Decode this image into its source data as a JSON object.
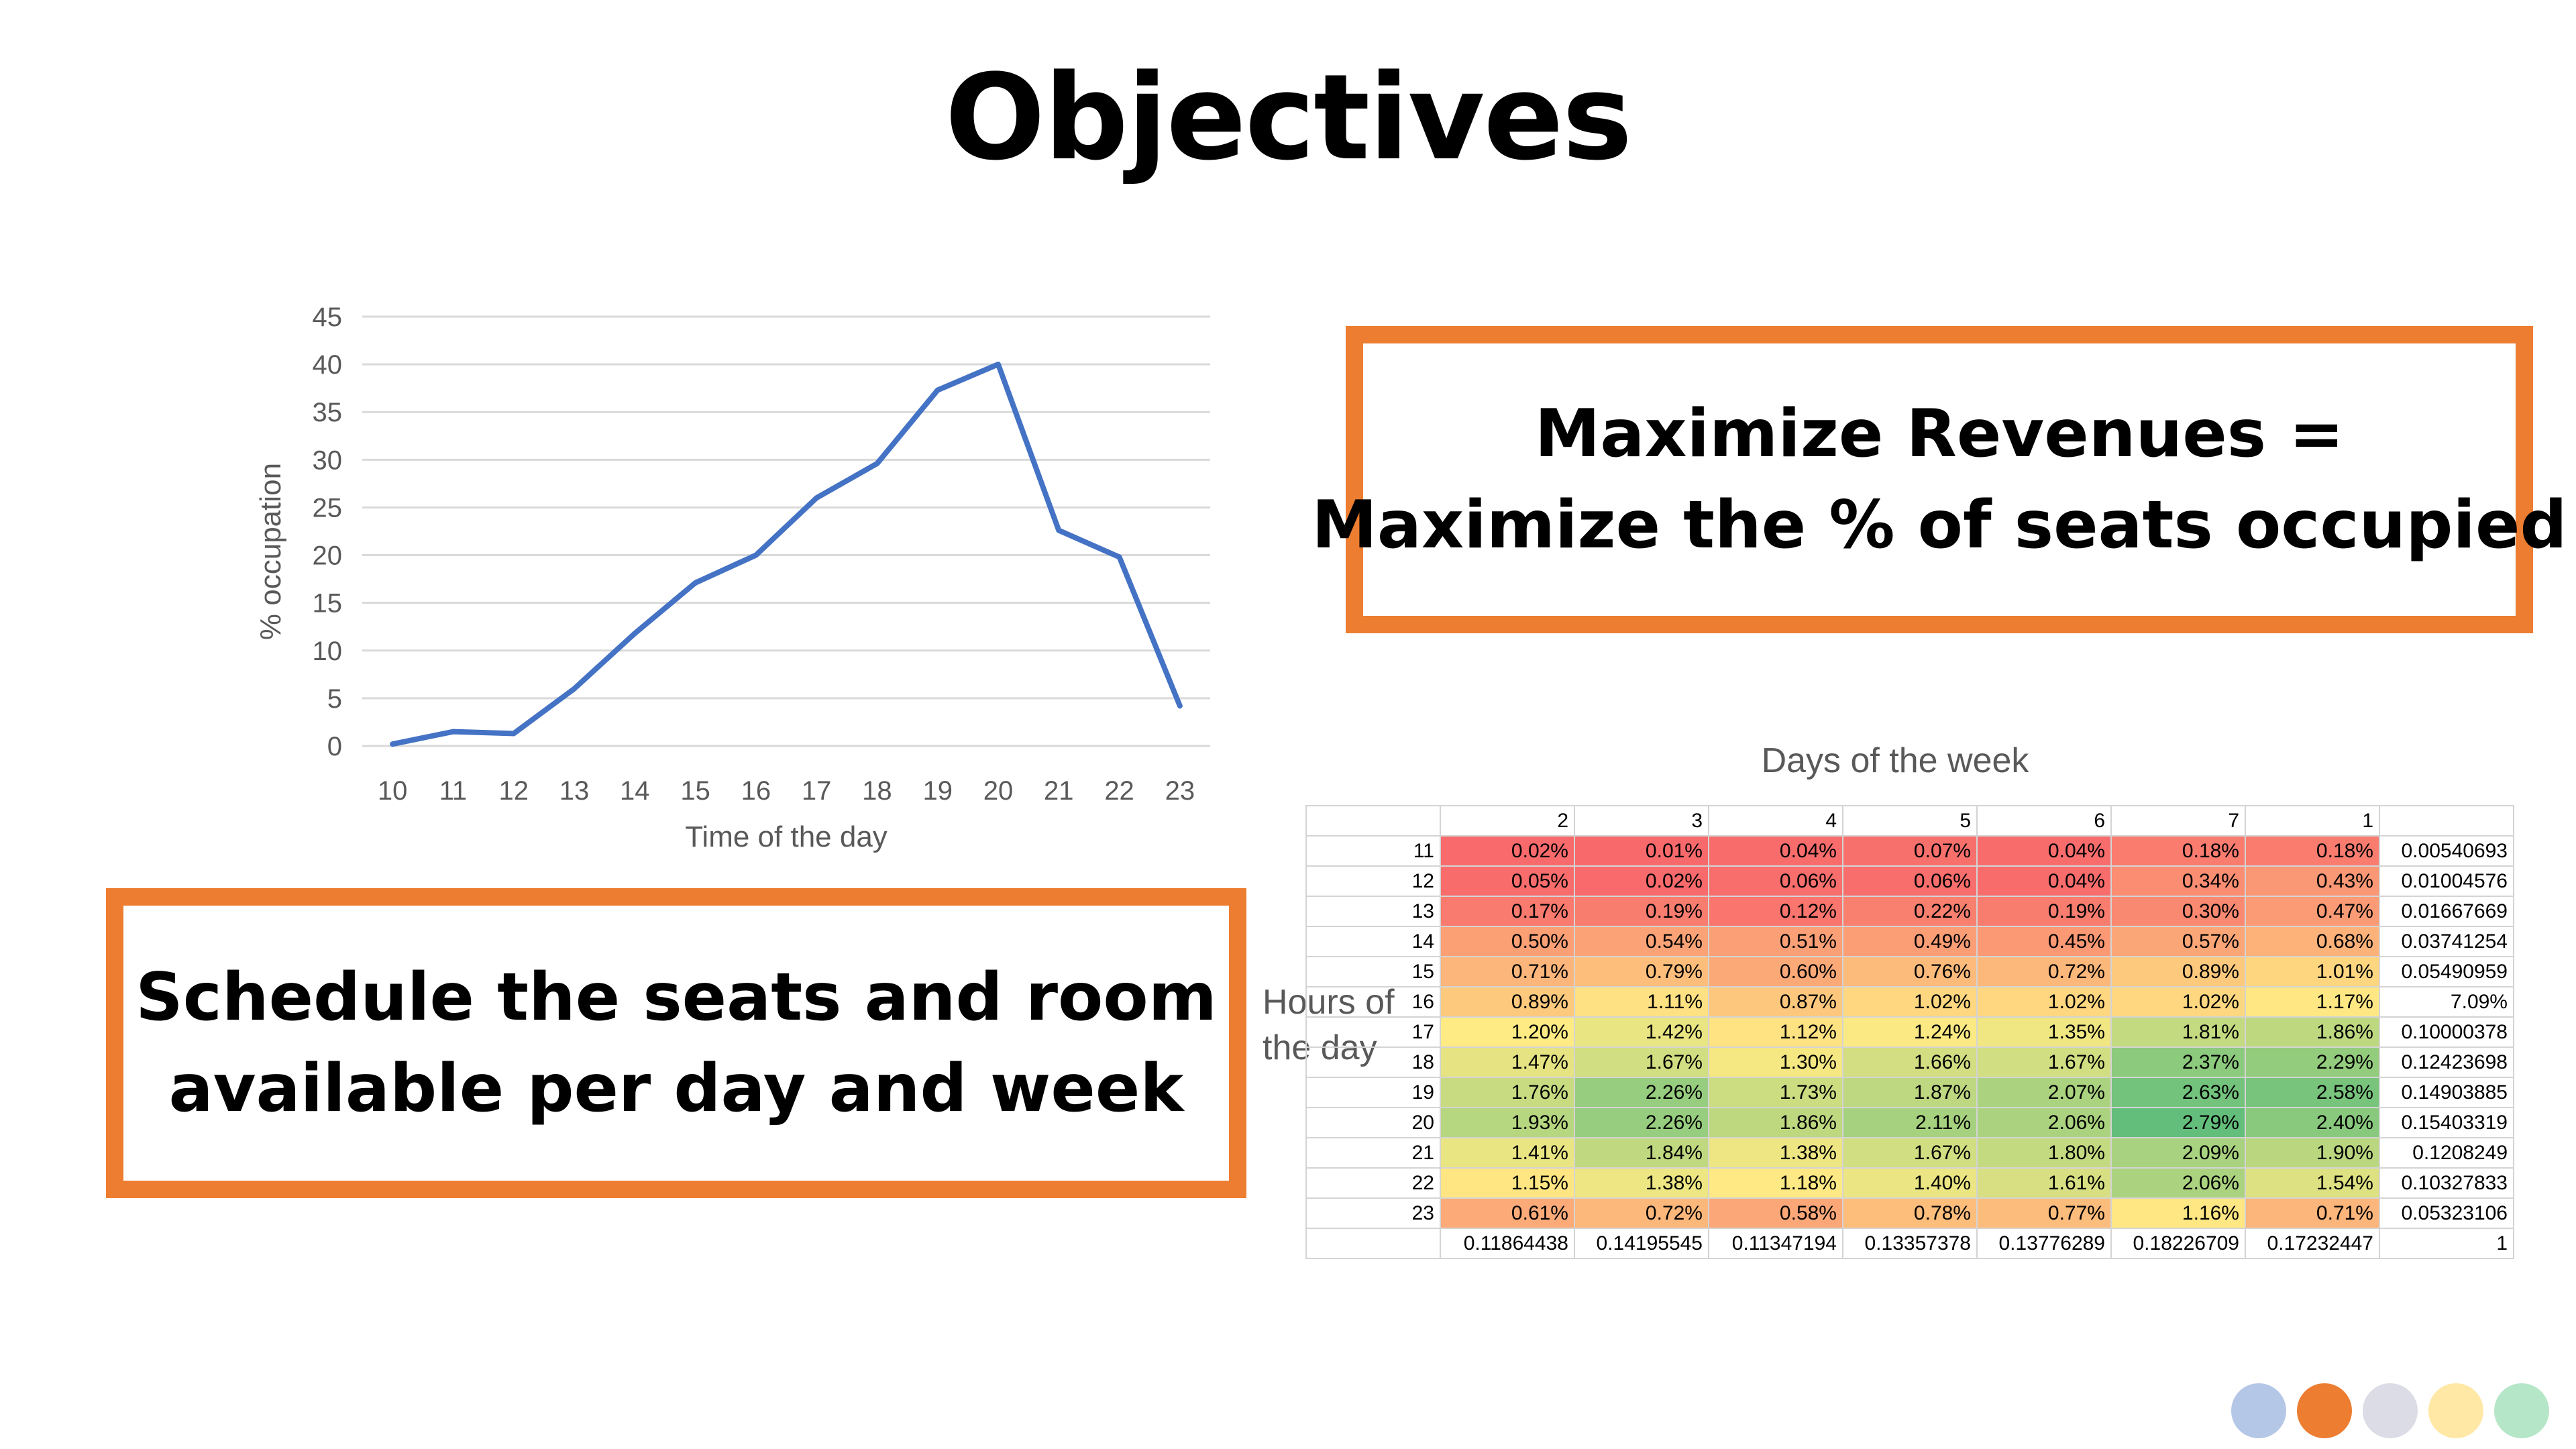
{
  "slide": {
    "title": "Objectives"
  },
  "chart_data": [
    {
      "type": "line",
      "x": [
        10,
        11,
        12,
        13,
        14,
        15,
        16,
        17,
        18,
        19,
        20,
        21,
        22,
        23
      ],
      "series": [
        {
          "values": [
            0.2,
            1.5,
            1.3,
            6,
            11.8,
            17.1,
            20,
            26,
            29.6,
            37.3,
            40,
            22.6,
            19.8,
            4.2
          ]
        }
      ],
      "title": "",
      "xlabel": "Time of the day",
      "ylabel": "% occupation",
      "ylim": [
        0,
        45
      ],
      "yticks": [
        0,
        5,
        10,
        15,
        20,
        25,
        30,
        35,
        40,
        45
      ],
      "grid": true,
      "color": "#4472C4"
    },
    {
      "type": "heatmap",
      "title": "Days of the week",
      "ylabel": "Hours of the day",
      "columns": [
        "2",
        "3",
        "4",
        "5",
        "6",
        "7",
        "1"
      ],
      "rows": [
        {
          "hour": "11",
          "cells": [
            "0.02%",
            "0.01%",
            "0.04%",
            "0.07%",
            "0.04%",
            "0.18%",
            "0.18%"
          ],
          "values": [
            0.02,
            0.01,
            0.04,
            0.07,
            0.04,
            0.18,
            0.18
          ],
          "total": "0.00540693"
        },
        {
          "hour": "12",
          "cells": [
            "0.05%",
            "0.02%",
            "0.06%",
            "0.06%",
            "0.04%",
            "0.34%",
            "0.43%"
          ],
          "values": [
            0.05,
            0.02,
            0.06,
            0.06,
            0.04,
            0.34,
            0.43
          ],
          "total": "0.01004576"
        },
        {
          "hour": "13",
          "cells": [
            "0.17%",
            "0.19%",
            "0.12%",
            "0.22%",
            "0.19%",
            "0.30%",
            "0.47%"
          ],
          "values": [
            0.17,
            0.19,
            0.12,
            0.22,
            0.19,
            0.3,
            0.47
          ],
          "total": "0.01667669"
        },
        {
          "hour": "14",
          "cells": [
            "0.50%",
            "0.54%",
            "0.51%",
            "0.49%",
            "0.45%",
            "0.57%",
            "0.68%"
          ],
          "values": [
            0.5,
            0.54,
            0.51,
            0.49,
            0.45,
            0.57,
            0.68
          ],
          "total": "0.03741254"
        },
        {
          "hour": "15",
          "cells": [
            "0.71%",
            "0.79%",
            "0.60%",
            "0.76%",
            "0.72%",
            "0.89%",
            "1.01%"
          ],
          "values": [
            0.71,
            0.79,
            0.6,
            0.76,
            0.72,
            0.89,
            1.01
          ],
          "total": "0.05490959"
        },
        {
          "hour": "16",
          "cells": [
            "0.89%",
            "1.11%",
            "0.87%",
            "1.02%",
            "1.02%",
            "1.02%",
            "1.17%"
          ],
          "values": [
            0.89,
            1.11,
            0.87,
            1.02,
            1.02,
            1.02,
            1.17
          ],
          "total": "7.09%"
        },
        {
          "hour": "17",
          "cells": [
            "1.20%",
            "1.42%",
            "1.12%",
            "1.24%",
            "1.35%",
            "1.81%",
            "1.86%"
          ],
          "values": [
            1.2,
            1.42,
            1.12,
            1.24,
            1.35,
            1.81,
            1.86
          ],
          "total": "0.10000378"
        },
        {
          "hour": "18",
          "cells": [
            "1.47%",
            "1.67%",
            "1.30%",
            "1.66%",
            "1.67%",
            "2.37%",
            "2.29%"
          ],
          "values": [
            1.47,
            1.67,
            1.3,
            1.66,
            1.67,
            2.37,
            2.29
          ],
          "total": "0.12423698"
        },
        {
          "hour": "19",
          "cells": [
            "1.76%",
            "2.26%",
            "1.73%",
            "1.87%",
            "2.07%",
            "2.63%",
            "2.58%"
          ],
          "values": [
            1.76,
            2.26,
            1.73,
            1.87,
            2.07,
            2.63,
            2.58
          ],
          "total": "0.14903885"
        },
        {
          "hour": "20",
          "cells": [
            "1.93%",
            "2.26%",
            "1.86%",
            "2.11%",
            "2.06%",
            "2.79%",
            "2.40%"
          ],
          "values": [
            1.93,
            2.26,
            1.86,
            2.11,
            2.06,
            2.79,
            2.4
          ],
          "total": "0.15403319"
        },
        {
          "hour": "21",
          "cells": [
            "1.41%",
            "1.84%",
            "1.38%",
            "1.67%",
            "1.80%",
            "2.09%",
            "1.90%"
          ],
          "values": [
            1.41,
            1.84,
            1.38,
            1.67,
            1.8,
            2.09,
            1.9
          ],
          "total": "0.1208249"
        },
        {
          "hour": "22",
          "cells": [
            "1.15%",
            "1.38%",
            "1.18%",
            "1.40%",
            "1.61%",
            "2.06%",
            "1.54%"
          ],
          "values": [
            1.15,
            1.38,
            1.18,
            1.4,
            1.61,
            2.06,
            1.54
          ],
          "total": "0.10327833"
        },
        {
          "hour": "23",
          "cells": [
            "0.61%",
            "0.72%",
            "0.58%",
            "0.78%",
            "0.77%",
            "1.16%",
            "0.71%"
          ],
          "values": [
            0.61,
            0.72,
            0.58,
            0.78,
            0.77,
            1.16,
            0.71
          ],
          "total": "0.05323106"
        }
      ],
      "column_totals": [
        "0.11864438",
        "0.14195545",
        "0.11347194",
        "0.13357378",
        "0.13776289",
        "0.18226709",
        "0.17232447"
      ],
      "grand_total": "1",
      "color_scale": {
        "low": "#F8696B",
        "mid": "#FFEB84",
        "high": "#63BE7B",
        "min": 0.01,
        "mid_value": 1.2,
        "max": 2.79
      }
    }
  ],
  "boxes": {
    "revenue": {
      "line1": "Maximize Revenues =",
      "line2": "Maximize the % of seats occupied"
    },
    "schedule": {
      "line1": "Schedule the seats and room",
      "line2": "available per day and week"
    }
  },
  "heatmap_labels": {
    "hours_line1": "Hours of",
    "hours_line2": "the day"
  },
  "decor": {
    "dot_colors": [
      "#B4C7E7",
      "#ED7D31",
      "#DCDCE6",
      "#FFE8A6",
      "#B6E6C8"
    ]
  },
  "colors": {
    "accent": "#ED7D31",
    "line": "#4472C4"
  }
}
